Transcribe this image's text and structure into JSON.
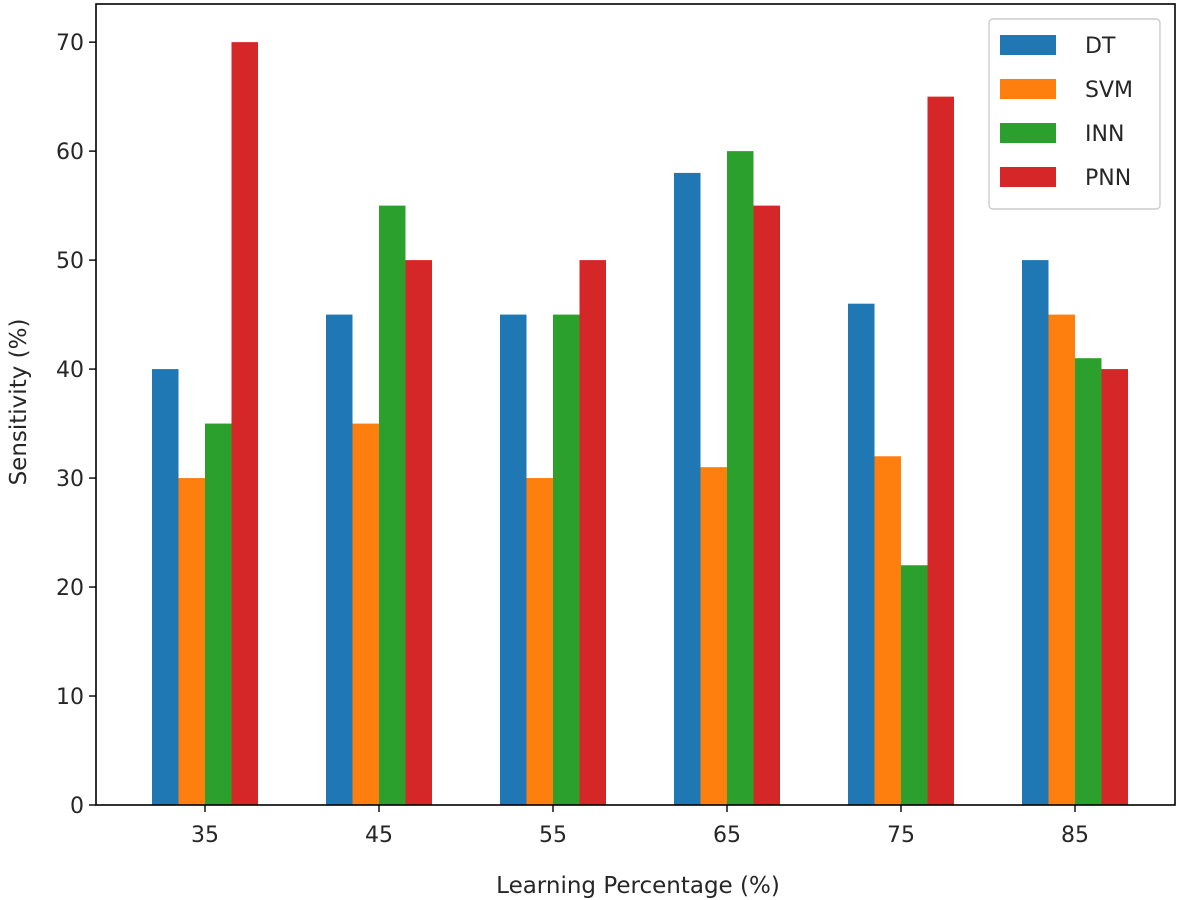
{
  "chart_data": {
    "type": "bar",
    "title": "",
    "xlabel": "Learning Percentage (%)",
    "ylabel": "Sensitivity (%)",
    "categories": [
      "35",
      "45",
      "55",
      "65",
      "75",
      "85"
    ],
    "yticks": [
      0,
      10,
      20,
      30,
      40,
      50,
      60,
      70
    ],
    "ylim": [
      0,
      73.5
    ],
    "grid": false,
    "legend_position": "top-right",
    "series": [
      {
        "name": "DT",
        "color": "#1f77b4",
        "values": [
          40,
          45,
          45,
          58,
          46,
          50
        ]
      },
      {
        "name": "SVM",
        "color": "#ff7f0e",
        "values": [
          30,
          35,
          30,
          31,
          32,
          45
        ]
      },
      {
        "name": "INN",
        "color": "#2ca02c",
        "values": [
          35,
          55,
          45,
          60,
          22,
          41
        ]
      },
      {
        "name": "PNN",
        "color": "#d62728",
        "values": [
          70,
          50,
          50,
          55,
          65,
          40
        ]
      }
    ]
  }
}
